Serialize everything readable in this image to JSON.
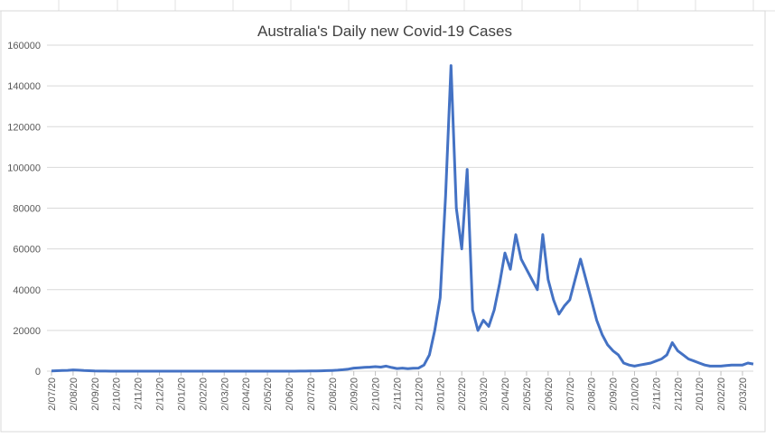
{
  "chart_data": {
    "type": "line",
    "title": "Australia's Daily new Covid-19 Cases",
    "categories": [
      "2/07/20",
      null,
      null,
      null,
      "2/08/20",
      null,
      null,
      null,
      "2/09/20",
      null,
      null,
      null,
      "2/10/20",
      null,
      null,
      null,
      "2/11/20",
      null,
      null,
      null,
      "2/12/20",
      null,
      null,
      null,
      "2/01/20",
      null,
      null,
      null,
      "2/02/20",
      null,
      null,
      null,
      "2/03/20",
      null,
      null,
      null,
      "2/04/20",
      null,
      null,
      null,
      "2/05/20",
      null,
      null,
      null,
      "2/06/20",
      null,
      null,
      null,
      "2/07/20",
      null,
      null,
      null,
      "2/08/20",
      null,
      null,
      null,
      "2/09/20",
      null,
      null,
      null,
      "2/10/20",
      null,
      null,
      null,
      "2/11/20",
      null,
      null,
      null,
      "2/12/20",
      null,
      null,
      null,
      "2/01/20",
      null,
      null,
      null,
      "2/02/20",
      null,
      null,
      null,
      "2/03/20",
      null,
      null,
      null,
      "2/04/20",
      null,
      null,
      null,
      "2/05/20",
      null,
      null,
      null,
      "2/06/20",
      null,
      null,
      null,
      "2/07/20",
      null,
      null,
      null,
      "2/08/20",
      null,
      null,
      null,
      "2/09/20",
      null,
      null,
      null,
      "2/10/20",
      null,
      null,
      null,
      "2/11/20",
      null,
      null,
      null,
      "2/12/20",
      null,
      null,
      null,
      "2/01/20",
      null,
      null,
      null,
      "2/02/20",
      null,
      null,
      null,
      "2/03/20",
      null,
      null
    ],
    "values": [
      100,
      200,
      300,
      400,
      600,
      500,
      300,
      200,
      100,
      50,
      30,
      20,
      10,
      10,
      10,
      10,
      10,
      10,
      10,
      10,
      10,
      15,
      20,
      15,
      10,
      10,
      10,
      10,
      10,
      10,
      10,
      10,
      10,
      10,
      10,
      10,
      10,
      10,
      10,
      10,
      10,
      10,
      10,
      10,
      15,
      20,
      30,
      40,
      80,
      120,
      180,
      250,
      350,
      500,
      700,
      1000,
      1500,
      1700,
      1900,
      2000,
      2200,
      2000,
      2500,
      1800,
      1300,
      1500,
      1200,
      1400,
      1500,
      3000,
      8000,
      20000,
      36000,
      86000,
      150000,
      80000,
      60000,
      99000,
      30000,
      20000,
      25000,
      22000,
      30000,
      43000,
      58000,
      50000,
      67000,
      55000,
      50000,
      45000,
      40000,
      67000,
      45000,
      35000,
      28000,
      32000,
      35000,
      45000,
      55000,
      45000,
      35000,
      25000,
      18000,
      13000,
      10000,
      8000,
      4000,
      3000,
      2500,
      3000,
      3500,
      4000,
      5000,
      6000,
      8000,
      14000,
      10000,
      8000,
      6000,
      5000,
      4000,
      3000,
      2500,
      2500,
      2500,
      2800,
      3000,
      3000,
      3000,
      4000,
      3500
    ],
    "color": "#4472c4",
    "ylim": [
      0,
      160000
    ],
    "yticks": [
      0,
      20000,
      40000,
      60000,
      80000,
      100000,
      120000,
      140000,
      160000
    ],
    "grid": true
  }
}
